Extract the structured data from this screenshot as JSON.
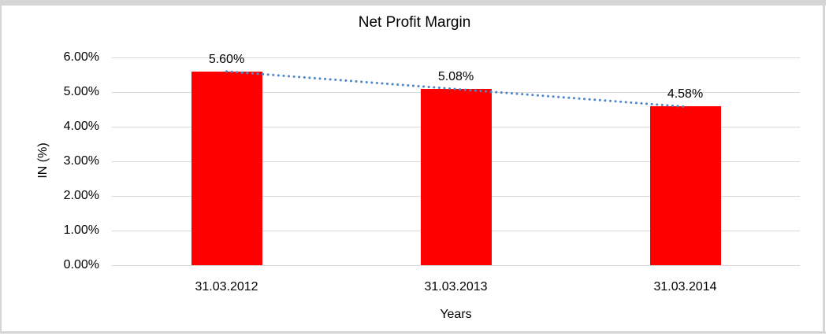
{
  "window": {
    "background": "#FFFFFF",
    "frame_color": "#D5D5D5"
  },
  "chart_data": {
    "type": "bar",
    "title": "Net Profit Margin",
    "xlabel": "Years",
    "ylabel": "IN (%)",
    "categories": [
      "31.03.2012",
      "31.03.2013",
      "31.03.2014"
    ],
    "values": [
      5.6,
      5.08,
      4.58
    ],
    "data_labels": [
      "5.60%",
      "5.08%",
      "4.58%"
    ],
    "ylim": [
      0,
      6
    ],
    "ytick_step": 1,
    "ytick_labels": [
      "0.00%",
      "1.00%",
      "2.00%",
      "3.00%",
      "4.00%",
      "5.00%",
      "6.00%"
    ],
    "grid": true,
    "legend": false,
    "bar_color": "#FF0000",
    "gridline_color": "#D9D9D9",
    "text_color": "#000000",
    "trendline": {
      "type": "linear",
      "style": "dotted",
      "color": "#4F87C7"
    }
  }
}
